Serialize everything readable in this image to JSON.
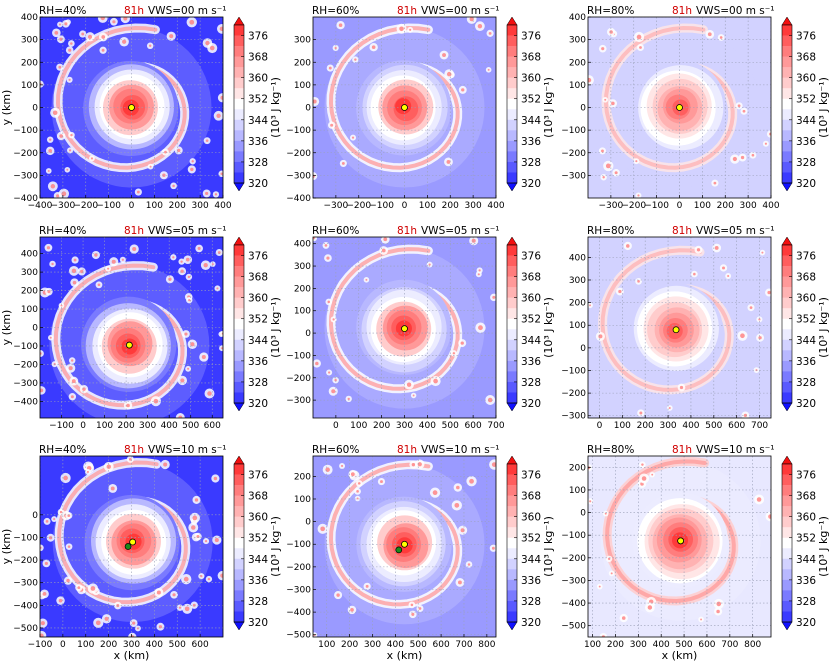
{
  "figure": {
    "panel_hour": "81h",
    "shared_xlabel": "x (km)",
    "shared_ylabel": "y (km)",
    "colorbar_label": "(10³ J kg⁻¹)",
    "colorbar_ticks": [
      "320",
      "328",
      "336",
      "344",
      "352",
      "360",
      "368",
      "376"
    ],
    "colorbar_colors": [
      "#1010ff",
      "#3a3aff",
      "#5a5aff",
      "#7a7aff",
      "#9a9aff",
      "#b8b8ff",
      "#d2d2ff",
      "#ececff",
      "#ffffff",
      "#ffe6e6",
      "#ffcccc",
      "#ffb2b2",
      "#ff9999",
      "#ff7d7d",
      "#ff5e5e",
      "#ff3a3a",
      "#f20f0f"
    ],
    "colorbar_values": [
      320,
      324,
      328,
      332,
      336,
      340,
      344,
      348,
      352,
      356,
      360,
      364,
      368,
      372,
      376,
      380
    ],
    "colors": {
      "red_text": "#d00000",
      "grid": "#9aa0b8",
      "center_marker": "#ffff00",
      "track_marker": "#1a8a1a"
    }
  },
  "chart_data": [
    {
      "type": "heatmap",
      "row": 0,
      "col": 0,
      "rh_label": "RH=40%",
      "vws_label": "VWS=00 m s⁻¹",
      "xlim": [
        -400,
        400
      ],
      "ylim": [
        -400,
        400
      ],
      "xticks": [
        "−400",
        "−300",
        "−200",
        "−100",
        "0",
        "100",
        "200",
        "300",
        "400"
      ],
      "yticks": [
        "400",
        "300",
        "200",
        "100",
        "0",
        "−100",
        "−200",
        "−300",
        "−400"
      ],
      "xlabel": "",
      "ylabel": "y (km)",
      "center": [
        0,
        0
      ],
      "track_point": null,
      "background_color": "#3a3aff"
    },
    {
      "type": "heatmap",
      "row": 0,
      "col": 1,
      "rh_label": "RH=60%",
      "vws_label": "VWS=00 m s⁻¹",
      "xlim": [
        -400,
        400
      ],
      "ylim": [
        -400,
        400
      ],
      "xticks": [
        "−300",
        "−200",
        "−100",
        "0",
        "100",
        "200",
        "300",
        "400"
      ],
      "yticks": [
        "300",
        "200",
        "100",
        "0",
        "−100",
        "−200",
        "−300",
        "−400"
      ],
      "xlabel": "",
      "ylabel": "",
      "center": [
        0,
        0
      ],
      "track_point": null,
      "background_color": "#9a9aff"
    },
    {
      "type": "heatmap",
      "row": 0,
      "col": 2,
      "rh_label": "RH=80%",
      "vws_label": "VWS=00 m s⁻¹",
      "xlim": [
        -400,
        400
      ],
      "ylim": [
        -400,
        400
      ],
      "xticks": [
        "−300",
        "−200",
        "−100",
        "0",
        "100",
        "200",
        "300",
        "400"
      ],
      "yticks": [
        "400",
        "300",
        "200",
        "100",
        "0",
        "−100",
        "−200",
        "−300"
      ],
      "xlabel": "",
      "ylabel": "",
      "center": [
        0,
        0
      ],
      "track_point": null,
      "background_color": "#d2d2ff"
    },
    {
      "type": "heatmap",
      "row": 1,
      "col": 0,
      "rh_label": "RH=40%",
      "vws_label": "VWS=05 m s⁻¹",
      "xlim": [
        -200,
        650
      ],
      "ylim": [
        -490,
        490
      ],
      "xticks": [
        "−100",
        "0",
        "100",
        "200",
        "300",
        "400",
        "500",
        "600"
      ],
      "yticks": [
        "400",
        "300",
        "200",
        "100",
        "0",
        "−100",
        "−200",
        "−300",
        "−400"
      ],
      "xlabel": "",
      "ylabel": "y (km)",
      "center": [
        215,
        -95
      ],
      "track_point": null,
      "background_color": "#3a3aff"
    },
    {
      "type": "heatmap",
      "row": 1,
      "col": 1,
      "rh_label": "RH=60%",
      "vws_label": "VWS=05 m s⁻¹",
      "xlim": [
        -100,
        700
      ],
      "ylim": [
        -380,
        430
      ],
      "xticks": [
        "0",
        "100",
        "200",
        "300",
        "400",
        "500",
        "600",
        "700"
      ],
      "yticks": [
        "400",
        "300",
        "200",
        "100",
        "0",
        "−100",
        "−200",
        "−300"
      ],
      "xlabel": "",
      "ylabel": "",
      "center": [
        300,
        20
      ],
      "track_point": null,
      "background_color": "#9a9aff"
    },
    {
      "type": "heatmap",
      "row": 1,
      "col": 2,
      "rh_label": "RH=80%",
      "vws_label": "VWS=05 m s⁻¹",
      "xlim": [
        -50,
        750
      ],
      "ylim": [
        -310,
        490
      ],
      "xticks": [
        "0",
        "100",
        "200",
        "300",
        "400",
        "500",
        "600",
        "700"
      ],
      "yticks": [
        "400",
        "300",
        "200",
        "100",
        "0",
        "−100",
        "−200",
        "−300"
      ],
      "xlabel": "",
      "ylabel": "",
      "center": [
        335,
        80
      ],
      "track_point": null,
      "background_color": "#d2d2ff"
    },
    {
      "type": "heatmap",
      "row": 2,
      "col": 0,
      "rh_label": "RH=40%",
      "vws_label": "VWS=10 m s⁻¹",
      "xlim": [
        -100,
        700
      ],
      "ylim": [
        -540,
        260
      ],
      "xticks": [
        "−100",
        "0",
        "100",
        "200",
        "300",
        "400",
        "500",
        "600"
      ],
      "yticks": [
        "0",
        "−100",
        "−200",
        "−300",
        "−400",
        "−500"
      ],
      "xlabel": "x (km)",
      "ylabel": "y (km)",
      "center": [
        305,
        -120
      ],
      "track_point": [
        285,
        -140
      ],
      "background_color": "#3a3aff"
    },
    {
      "type": "heatmap",
      "row": 2,
      "col": 1,
      "rh_label": "RH=60%",
      "vws_label": "VWS=10 m s⁻¹",
      "xlim": [
        40,
        840
      ],
      "ylim": [
        -510,
        290
      ],
      "xticks": [
        "100",
        "200",
        "300",
        "400",
        "500",
        "600",
        "700",
        "800"
      ],
      "yticks": [
        "200",
        "100",
        "0",
        "−100",
        "−200",
        "−300",
        "−400",
        "−500"
      ],
      "xlabel": "x (km)",
      "ylabel": "",
      "center": [
        440,
        -100
      ],
      "track_point": [
        415,
        -125
      ],
      "background_color": "#9a9aff"
    },
    {
      "type": "heatmap",
      "row": 2,
      "col": 2,
      "rh_label": "RH=80%",
      "vws_label": "VWS=10 m s⁻¹",
      "xlim": [
        80,
        880
      ],
      "ylim": [
        -550,
        250
      ],
      "xticks": [
        "100",
        "200",
        "300",
        "400",
        "500",
        "600",
        "700",
        "800"
      ],
      "yticks": [
        "200",
        "100",
        "0",
        "−100",
        "−200",
        "−300",
        "−400",
        "−500"
      ],
      "xlabel": "x (km)",
      "ylabel": "",
      "center": [
        485,
        -125
      ],
      "track_point": [
        485,
        -125
      ],
      "background_color": "#e8e8ff"
    }
  ]
}
